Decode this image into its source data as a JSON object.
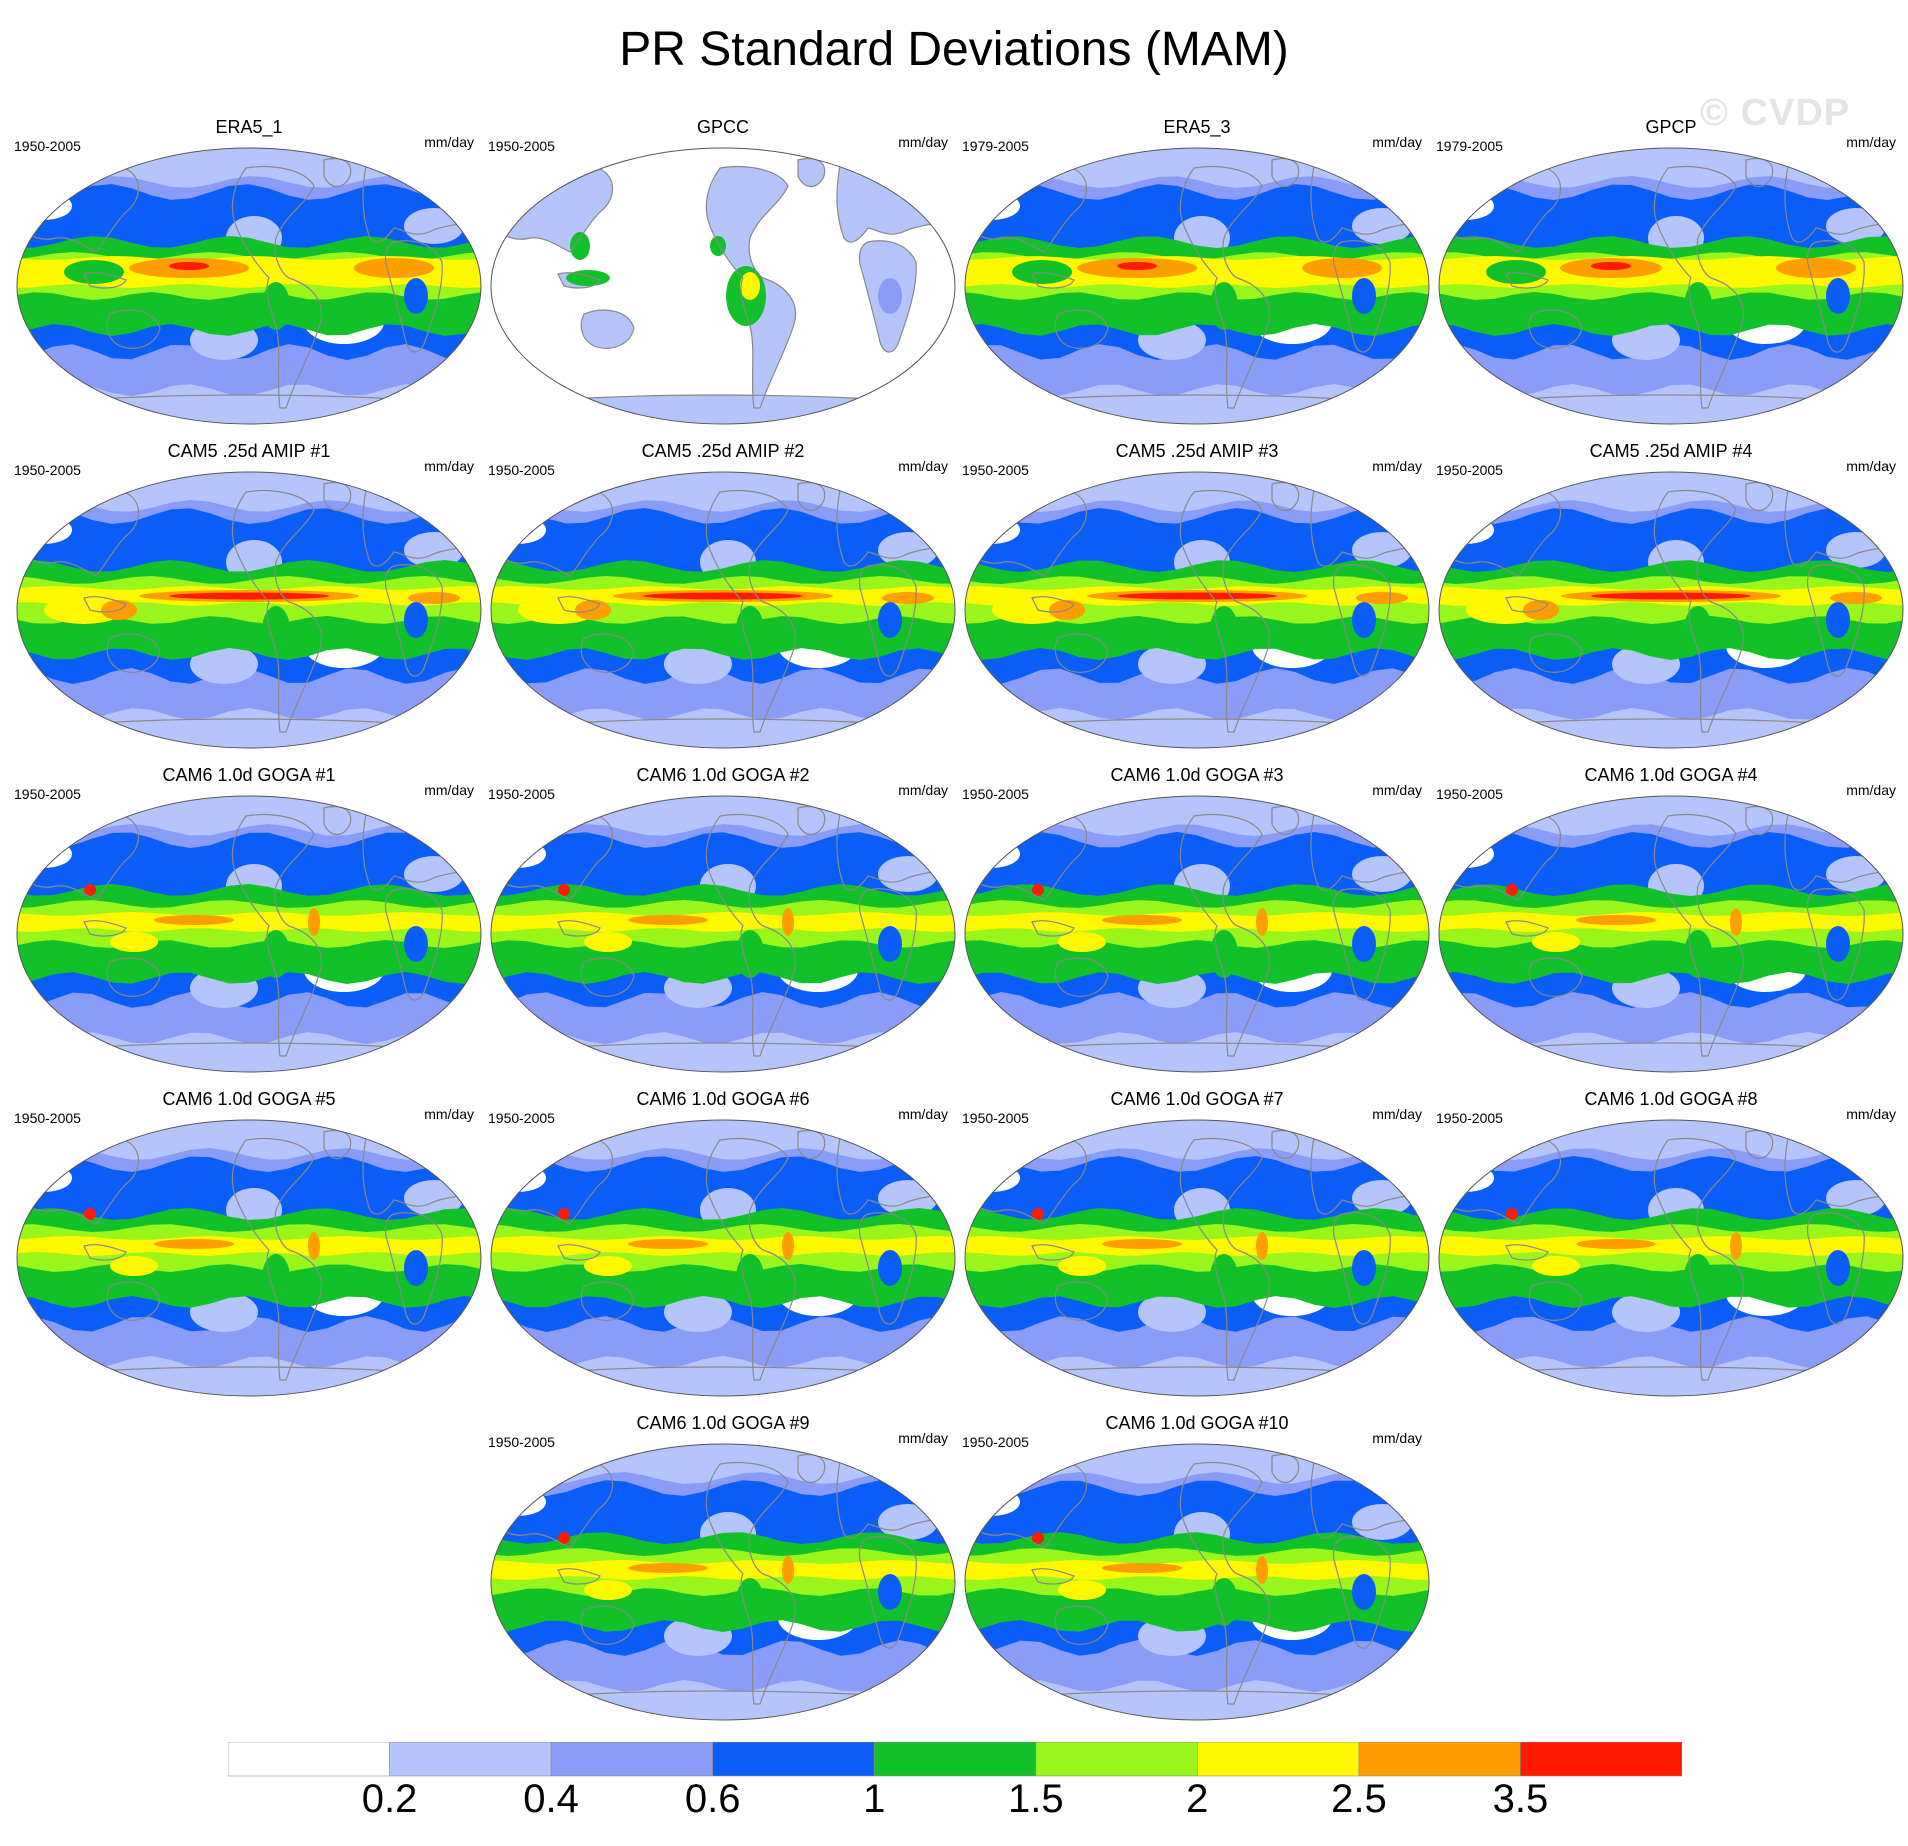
{
  "title": "PR Standard Deviations (MAM)",
  "watermark": "© CVDP",
  "units": "mm/day",
  "colors": {
    "c0": "#ffffff",
    "c1": "#b5c5fb",
    "c2": "#8a9cf8",
    "c3": "#0a5ef7",
    "c4": "#12c12a",
    "c5": "#9af51b",
    "c6": "#fff800",
    "c7": "#ff9e00",
    "c8": "#ff1a00",
    "coast": "#888888",
    "border": "#555555"
  },
  "colorbar": {
    "levels": [
      "0.2",
      "0.4",
      "0.6",
      "1",
      "1.5",
      "2",
      "2.5",
      "3.5"
    ]
  },
  "panels": [
    {
      "name": "ERA5_1",
      "period": "1950-2005",
      "type": "reanalysis"
    },
    {
      "name": "GPCC",
      "period": "1950-2005",
      "type": "land"
    },
    {
      "name": "ERA5_3",
      "period": "1979-2005",
      "type": "reanalysis"
    },
    {
      "name": "GPCP",
      "period": "1979-2005",
      "type": "gpcp"
    },
    {
      "name": "CAM5 .25d AMIP #1",
      "period": "1950-2005",
      "type": "cam5"
    },
    {
      "name": "CAM5 .25d AMIP #2",
      "period": "1950-2005",
      "type": "cam5"
    },
    {
      "name": "CAM5 .25d AMIP #3",
      "period": "1950-2005",
      "type": "cam5"
    },
    {
      "name": "CAM5 .25d AMIP #4",
      "period": "1950-2005",
      "type": "cam5"
    },
    {
      "name": "CAM6 1.0d GOGA #1",
      "period": "1950-2005",
      "type": "cam6"
    },
    {
      "name": "CAM6 1.0d GOGA #2",
      "period": "1950-2005",
      "type": "cam6"
    },
    {
      "name": "CAM6 1.0d GOGA #3",
      "period": "1950-2005",
      "type": "cam6"
    },
    {
      "name": "CAM6 1.0d GOGA #4",
      "period": "1950-2005",
      "type": "cam6"
    },
    {
      "name": "CAM6 1.0d GOGA #5",
      "period": "1950-2005",
      "type": "cam6"
    },
    {
      "name": "CAM6 1.0d GOGA #6",
      "period": "1950-2005",
      "type": "cam6"
    },
    {
      "name": "CAM6 1.0d GOGA #7",
      "period": "1950-2005",
      "type": "cam6"
    },
    {
      "name": "CAM6 1.0d GOGA #8",
      "period": "1950-2005",
      "type": "cam6"
    },
    {
      "name": "CAM6 1.0d GOGA #9",
      "period": "1950-2005",
      "type": "cam6"
    },
    {
      "name": "CAM6 1.0d GOGA #10",
      "period": "1950-2005",
      "type": "cam6"
    }
  ]
}
